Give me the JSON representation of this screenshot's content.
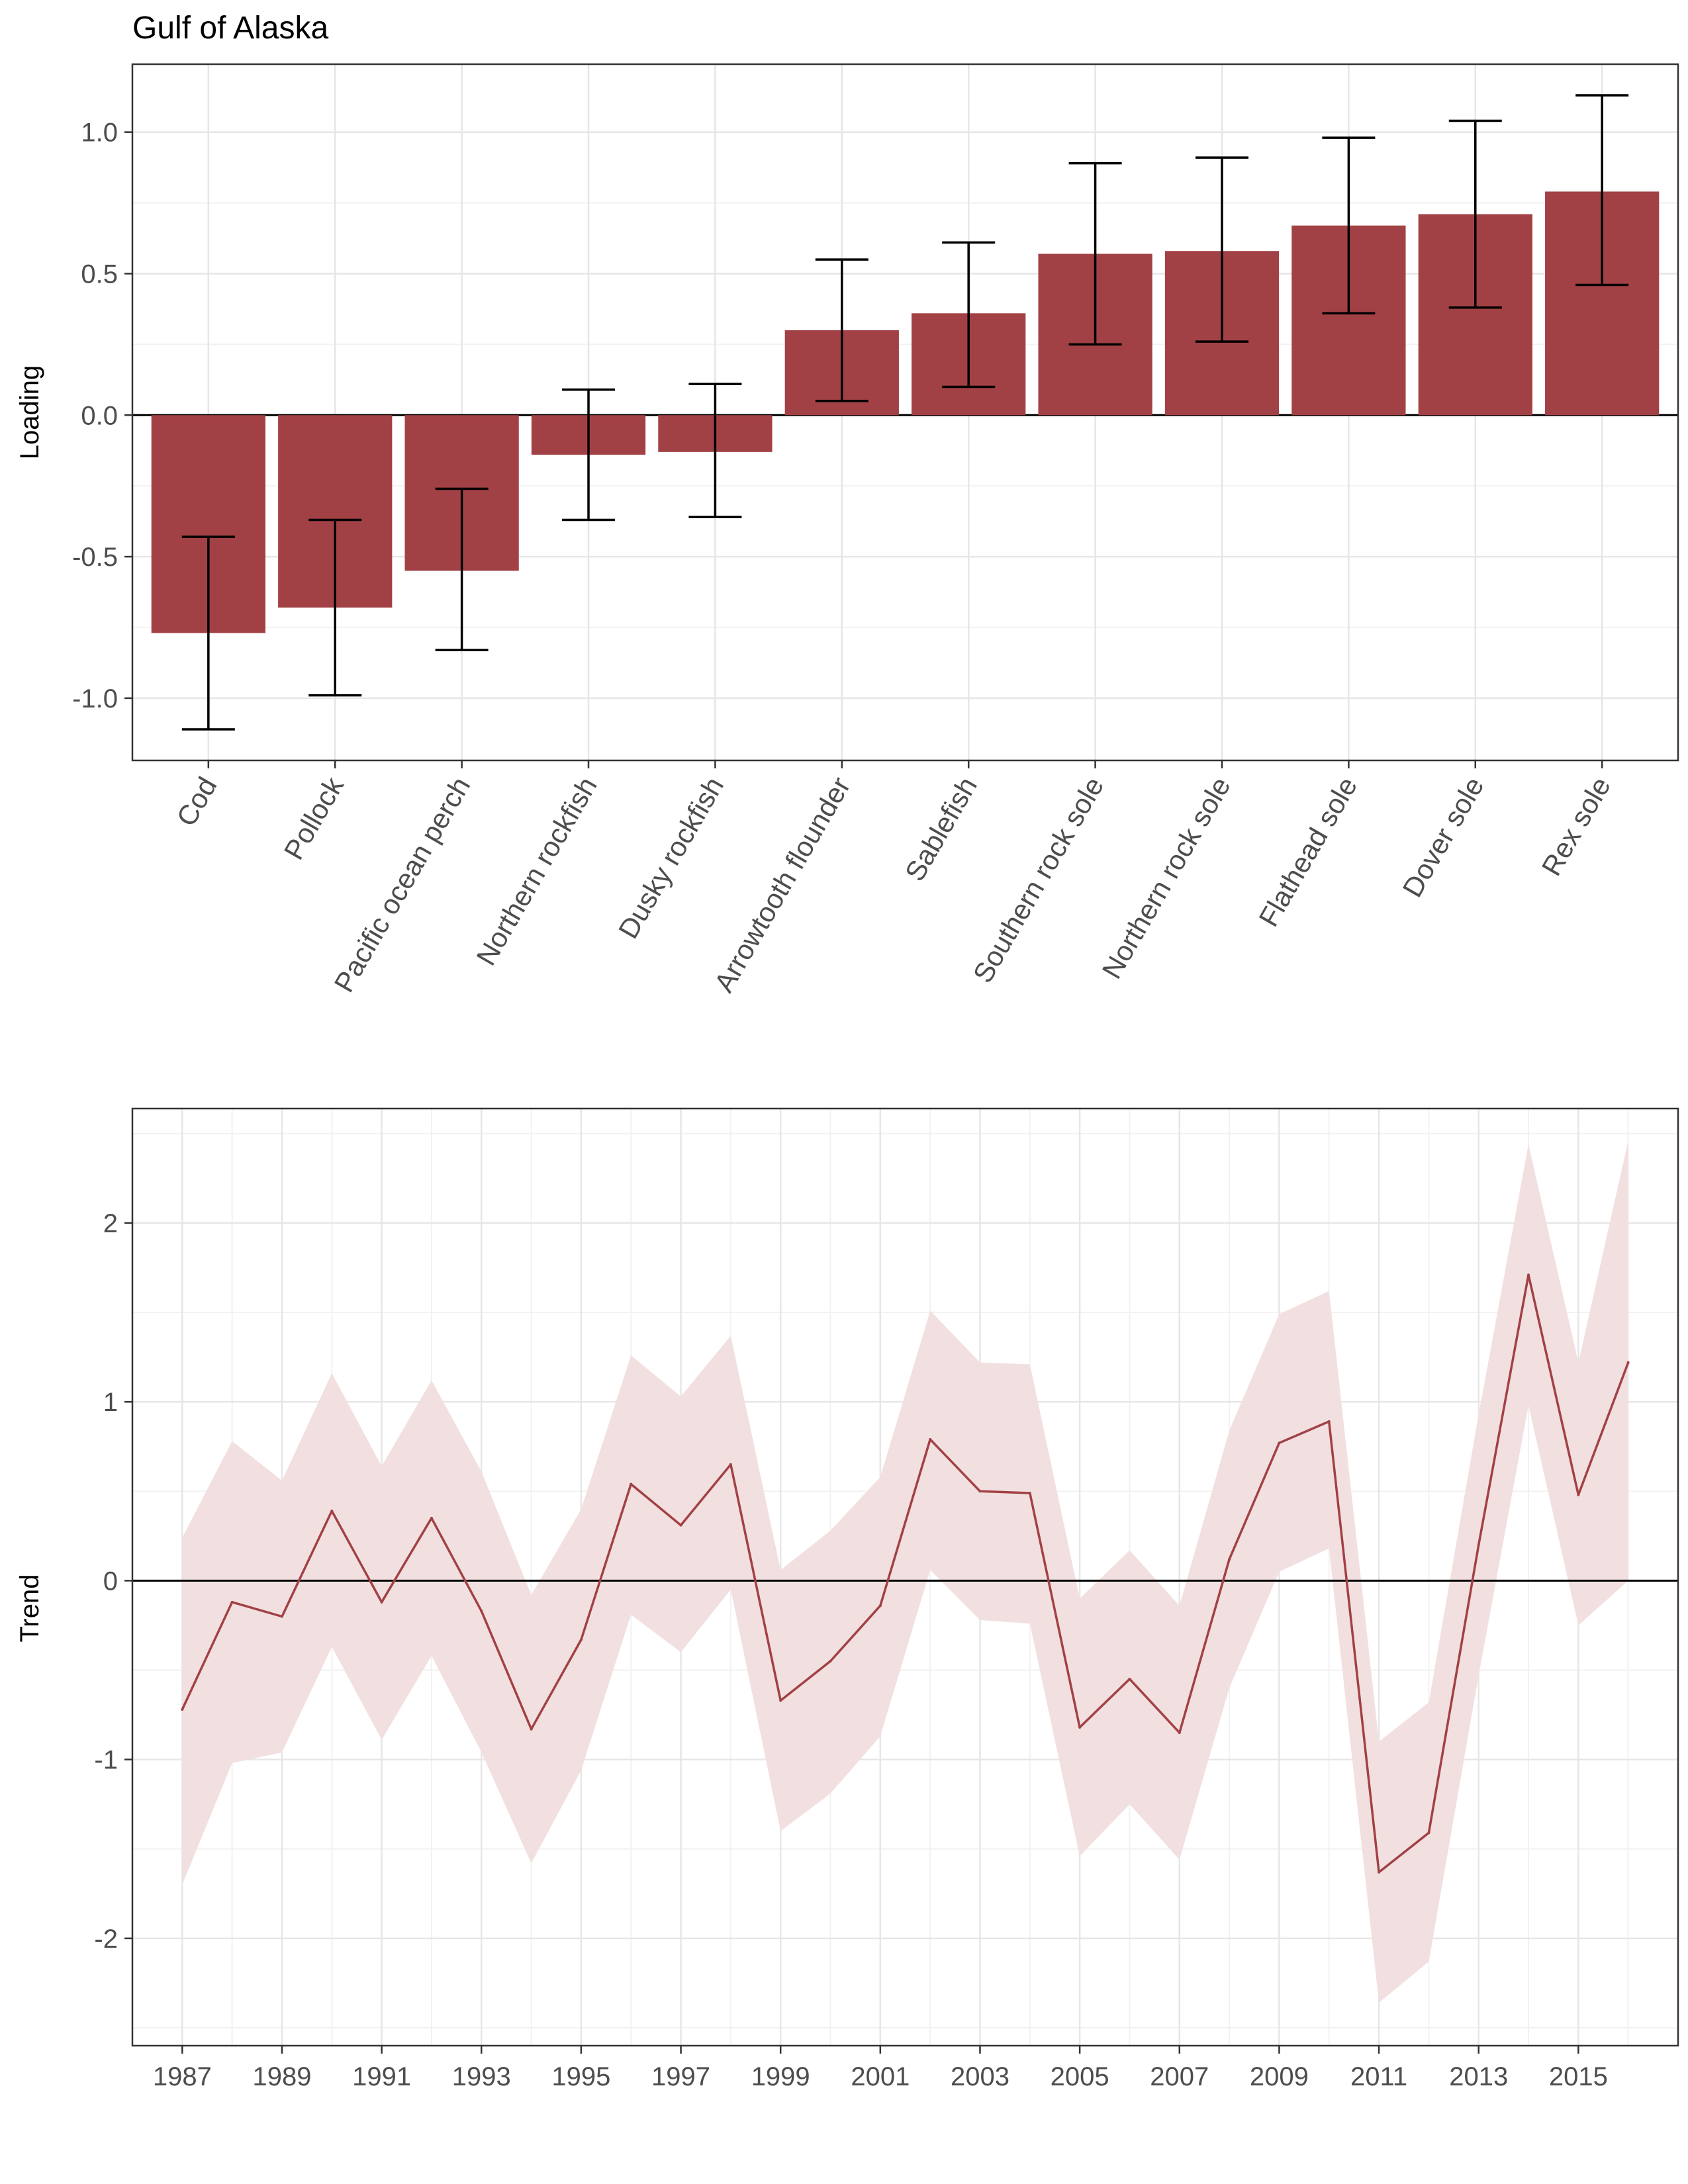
{
  "colors": {
    "bar": "#a24145",
    "line": "#a24145",
    "ribbon": "#f2e0e0",
    "grid_major": "#e6e6e6",
    "grid_minor": "#f2f2f2",
    "panel_border": "#333333",
    "tick_text": "#4d4d4d"
  },
  "chart_data": [
    {
      "type": "bar",
      "title": "Gulf of Alaska",
      "xlabel": "",
      "ylabel": "Loading",
      "ylim": [
        -1.22,
        1.24
      ],
      "yticks": [
        -1.0,
        -0.5,
        0.0,
        0.5,
        1.0
      ],
      "ytick_labels": [
        "-1.0",
        "-0.5",
        "0.0",
        "0.5",
        "1.0"
      ],
      "categories": [
        "Cod",
        "Pollock",
        "Pacific ocean perch",
        "Northern rockfish",
        "Dusky rockfish",
        "Arrowtooth flounder",
        "Sablefish",
        "Southern rock sole",
        "Northern rock sole",
        "Flathead sole",
        "Dover sole",
        "Rex sole"
      ],
      "values": [
        -0.77,
        -0.68,
        -0.55,
        -0.14,
        -0.13,
        0.3,
        0.36,
        0.57,
        0.58,
        0.67,
        0.71,
        0.79
      ],
      "error_low": [
        -1.11,
        -0.99,
        -0.83,
        -0.37,
        -0.36,
        0.05,
        0.1,
        0.25,
        0.26,
        0.36,
        0.38,
        0.46
      ],
      "error_high": [
        -0.43,
        -0.37,
        -0.26,
        0.09,
        0.11,
        0.55,
        0.61,
        0.89,
        0.91,
        0.98,
        1.04,
        1.13
      ],
      "reference_line": 0,
      "grid": true
    },
    {
      "type": "line",
      "title": "",
      "xlabel": "",
      "ylabel": "Trend",
      "xlim": [
        1986,
        2017
      ],
      "ylim": [
        -2.6,
        2.64
      ],
      "yticks": [
        -2,
        -1,
        0,
        1,
        2
      ],
      "ytick_labels": [
        "-2",
        "-1",
        "0",
        "1",
        "2"
      ],
      "xticks": [
        1987,
        1989,
        1991,
        1993,
        1995,
        1997,
        1999,
        2001,
        2003,
        2005,
        2007,
        2009,
        2011,
        2013,
        2015
      ],
      "xtick_labels": [
        "1987",
        "1989",
        "1991",
        "1993",
        "1995",
        "1997",
        "1999",
        "2001",
        "2003",
        "2005",
        "2007",
        "2009",
        "2011",
        "2013",
        "2015"
      ],
      "x": [
        1987,
        1988,
        1989,
        1990,
        1991,
        1992,
        1993,
        1994,
        1995,
        1996,
        1997,
        1998,
        1999,
        2000,
        2001,
        2002,
        2003,
        2004,
        2005,
        2006,
        2007,
        2008,
        2009,
        2010,
        2011,
        2012,
        2013,
        2014,
        2015,
        2016
      ],
      "values": [
        -0.72,
        -0.12,
        -0.2,
        0.39,
        -0.12,
        0.35,
        -0.17,
        -0.83,
        -0.33,
        0.54,
        0.31,
        0.65,
        -0.67,
        -0.45,
        -0.14,
        0.79,
        0.5,
        0.49,
        -0.82,
        -0.55,
        -0.85,
        0.12,
        0.77,
        0.89,
        -1.63,
        -1.41,
        0.2,
        1.71,
        0.48,
        1.22
      ],
      "lower": [
        -1.7,
        -1.02,
        -0.96,
        -0.37,
        -0.89,
        -0.42,
        -0.96,
        -1.58,
        -1.06,
        -0.19,
        -0.4,
        -0.05,
        -1.4,
        -1.19,
        -0.87,
        0.06,
        -0.22,
        -0.24,
        -1.54,
        -1.25,
        -1.56,
        -0.6,
        0.05,
        0.18,
        -2.36,
        -2.13,
        -0.53,
        0.98,
        -0.25,
        0.0
      ],
      "upper": [
        0.24,
        0.78,
        0.56,
        1.16,
        0.64,
        1.12,
        0.61,
        -0.08,
        0.4,
        1.26,
        1.03,
        1.37,
        0.06,
        0.28,
        0.58,
        1.51,
        1.22,
        1.21,
        -0.1,
        0.17,
        -0.14,
        0.84,
        1.49,
        1.62,
        -0.9,
        -0.68,
        0.93,
        2.44,
        1.22,
        2.46
      ],
      "reference_line": 0,
      "grid": true
    }
  ]
}
